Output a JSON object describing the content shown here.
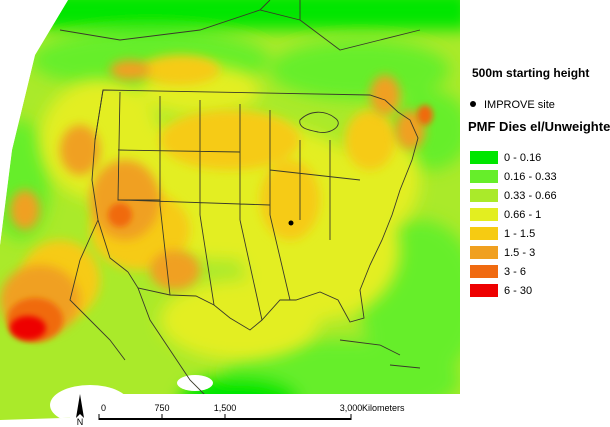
{
  "legend": {
    "heading": "500m starting height",
    "site_label": "IMPROVE site",
    "title": "PMF Dies el/Unweighted",
    "classes": [
      {
        "label": "0 - 0.16",
        "color": "#00e600"
      },
      {
        "label": "0.16 - 0.33",
        "color": "#66ee2a"
      },
      {
        "label": "0.33 - 0.66",
        "color": "#aaea2a"
      },
      {
        "label": "0.66 - 1",
        "color": "#e3ee20"
      },
      {
        "label": "1 - 1.5",
        "color": "#f6cb12"
      },
      {
        "label": "1.5 - 3",
        "color": "#f0a020"
      },
      {
        "label": "3 - 6",
        "color": "#f06a10"
      },
      {
        "label": "6 - 30",
        "color": "#ee0000"
      }
    ]
  },
  "scale_bar": {
    "ticks": [
      "0",
      "750",
      "1,500",
      "3,000"
    ],
    "unit": "Kilometers"
  },
  "north_arrow": {
    "label": "N",
    "icon": "north-arrow-icon"
  },
  "site": {
    "name": "IMPROVE site"
  }
}
